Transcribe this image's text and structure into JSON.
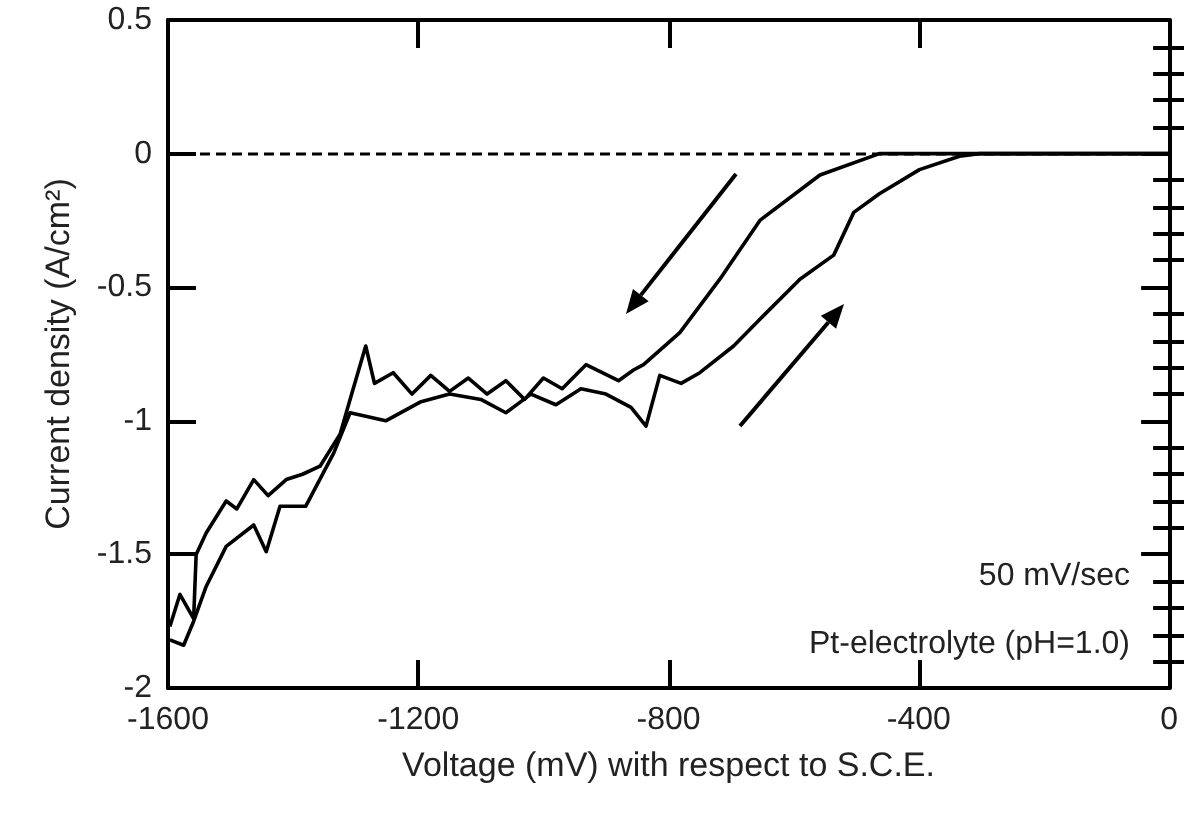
{
  "chart_data": {
    "type": "line",
    "xlabel": "Voltage (mV) with respect to S.C.E.",
    "ylabel": "Current density (A/cm²)",
    "xlim": [
      -1600,
      0
    ],
    "xticks": [
      -1600,
      -1200,
      -800,
      -400,
      0
    ],
    "ylim": [
      -2,
      0.5
    ],
    "yticks": [
      -2,
      -1.5,
      -1,
      -0.5,
      0,
      0.5
    ],
    "grid": false,
    "marker": "none",
    "line_style": "solid",
    "ref_lines": [
      {
        "axis": "y",
        "value": 0,
        "color": "#000000",
        "line_style": "dashed"
      }
    ],
    "annotations": [
      "50 mV/sec",
      "Pt-electrolyte (pH=1.0)"
    ],
    "series": [
      {
        "color": "#000000",
        "x": [
          0,
          -200,
          -463,
          -558,
          -654,
          -718,
          -782,
          -840,
          -856,
          -880,
          -932,
          -970,
          -1000,
          -1030,
          -1060,
          -1090,
          -1120,
          -1150,
          -1180,
          -1210,
          -1240,
          -1270,
          -1284,
          -1309,
          -1325,
          -1357,
          -1385,
          -1411,
          -1440,
          -1463,
          -1490,
          -1507,
          -1539,
          -1555,
          -1559,
          -1581,
          -1597
        ],
        "values": [
          0,
          0,
          0,
          -0.08,
          -0.25,
          -0.47,
          -0.67,
          -0.79,
          -0.81,
          -0.85,
          -0.79,
          -0.88,
          -0.84,
          -0.92,
          -0.85,
          -0.9,
          -0.84,
          -0.89,
          -0.83,
          -0.9,
          -0.82,
          -0.86,
          -0.72,
          -0.92,
          -1.05,
          -1.17,
          -1.2,
          -1.22,
          -1.28,
          -1.22,
          -1.33,
          -1.3,
          -1.42,
          -1.5,
          -1.74,
          -1.65,
          -1.77
        ]
      },
      {
        "color": "#000000",
        "x": [
          -1597,
          -1575,
          -1559,
          -1539,
          -1507,
          -1463,
          -1443,
          -1421,
          -1380,
          -1335,
          -1309,
          -1252,
          -1197,
          -1150,
          -1100,
          -1060,
          -1020,
          -980,
          -940,
          -900,
          -860,
          -836,
          -814,
          -780,
          -750,
          -696,
          -654,
          -590,
          -536,
          -504,
          -463,
          -399,
          -335,
          -303,
          0
        ],
        "values": [
          -1.82,
          -1.84,
          -1.75,
          -1.62,
          -1.47,
          -1.39,
          -1.49,
          -1.32,
          -1.32,
          -1.12,
          -0.97,
          -1.0,
          -0.93,
          -0.9,
          -0.92,
          -0.97,
          -0.9,
          -0.94,
          -0.88,
          -0.9,
          -0.95,
          -1.02,
          -0.83,
          -0.86,
          -0.82,
          -0.72,
          -0.62,
          -0.47,
          -0.38,
          -0.22,
          -0.15,
          -0.06,
          -0.01,
          0,
          0
        ]
      }
    ]
  }
}
